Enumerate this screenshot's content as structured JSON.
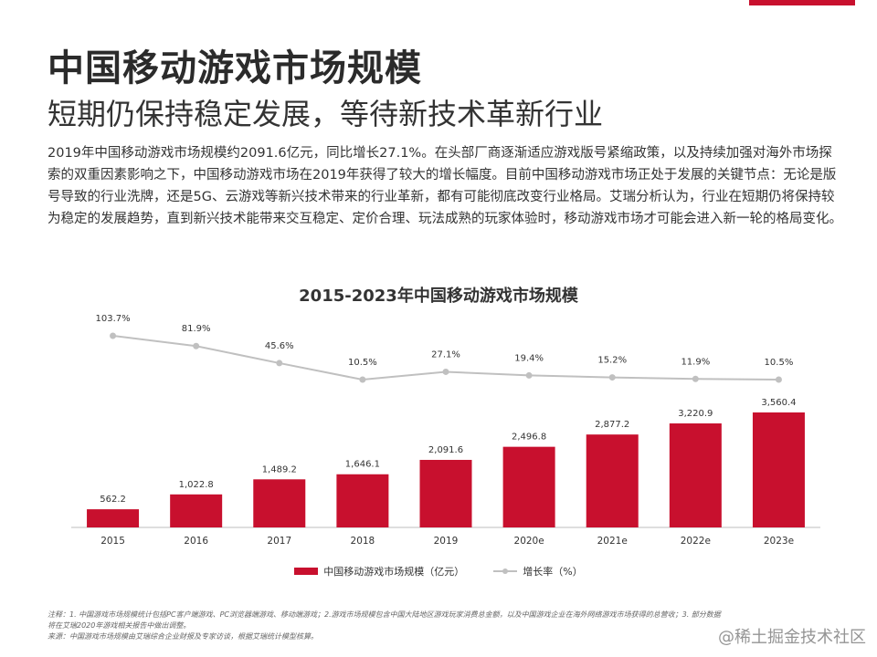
{
  "header": {
    "title": "中国移动游戏市场规模",
    "subtitle": "短期仍保持稳定发展，等待新技术革新行业"
  },
  "description": "2019年中国移动游戏市场规模约2091.6亿元，同比增长27.1%。在头部厂商逐渐适应游戏版号紧缩政策，以及持续加强对海外市场探索的双重因素影响之下，中国移动游戏市场在2019年获得了较大的增长幅度。目前中国移动游戏市场正处于发展的关键节点：无论是版号导致的行业洗牌，还是5G、云游戏等新兴技术带来的行业革新，都有可能彻底改变行业格局。艾瑞分析认为，行业在短期仍将保持较为稳定的发展趋势，直到新兴技术能带来交互稳定、定价合理、玩法成熟的玩家体验时，移动游戏市场才可能会进入新一轮的格局变化。",
  "chart_data": {
    "type": "bar",
    "title": "2015-2023年中国移动游戏市场规模",
    "categories": [
      "2015",
      "2016",
      "2017",
      "2018",
      "2019",
      "2020e",
      "2021e",
      "2022e",
      "2023e"
    ],
    "series": [
      {
        "name": "中国移动游戏市场规模（亿元）",
        "type": "bar",
        "values": [
          562.2,
          1022.8,
          1489.2,
          1646.1,
          2091.6,
          2496.8,
          2877.2,
          3220.9,
          3560.4
        ],
        "labels": [
          "562.2",
          "1,022.8",
          "1,489.2",
          "1,646.1",
          "2,091.6",
          "2,496.8",
          "2,877.2",
          "3,220.9",
          "3,560.4"
        ]
      },
      {
        "name": "增长率（%）",
        "type": "line",
        "values": [
          103.7,
          81.9,
          45.6,
          10.5,
          27.1,
          19.4,
          15.2,
          11.9,
          10.5
        ],
        "labels": [
          "103.7%",
          "81.9%",
          "45.6%",
          "10.5%",
          "27.1%",
          "19.4%",
          "15.2%",
          "11.9%",
          "10.5%"
        ]
      }
    ],
    "legend_position": "bottom",
    "grid": false,
    "colors": {
      "bar": "#c8102e",
      "line": "#c0c0c0"
    }
  },
  "footnote": {
    "line1": "注释：1. 中国游戏市场规模统计包括PC客户端游戏、PC浏览器端游戏、移动端游戏；2.游戏市场规模包含中国大陆地区游戏玩家消费总金额，以及中国游戏企业在海外网络游戏市场获得的总营收；3. 部分数据",
    "line2": "将在艾瑞2020年游戏相关报告中做出调整。",
    "line3": "来源：中国游戏市场规模由艾瑞综合企业财报及专家访谈，根据艾瑞统计模型核算。"
  },
  "watermark": "@稀土掘金技术社区"
}
